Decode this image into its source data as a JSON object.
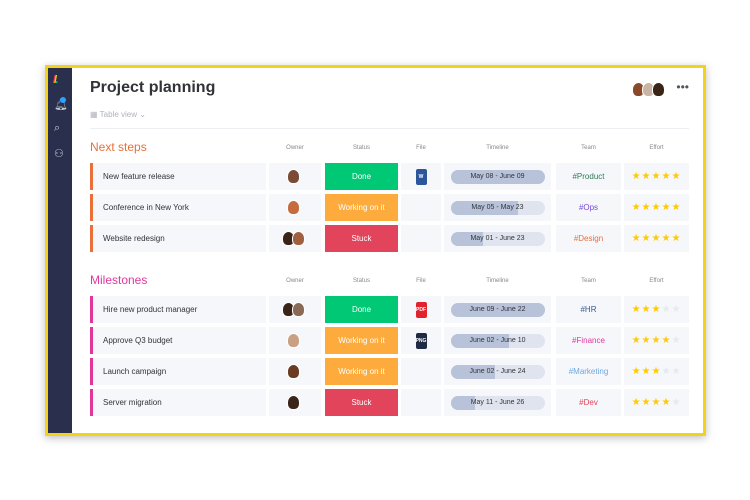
{
  "app": {
    "title": "Project planning",
    "view": "Table view",
    "more": "•••"
  },
  "colors": {
    "done": "#00c875",
    "working": "#fdab3d",
    "stuck": "#e2445c",
    "next_steps": "#e8703a",
    "milestones": "#e2369d",
    "star": "#ffcb00",
    "star_off": "#e6e9ef",
    "frame": "#f2d21b",
    "sidebar": "#292f4c"
  },
  "columns": {
    "owner": "Owner",
    "status": "Status",
    "file": "File",
    "timeline": "Timeline",
    "team": "Team",
    "effort": "Effort"
  },
  "groups": [
    {
      "title": "Next steps",
      "color": "#e8703a",
      "rows": [
        {
          "name": "New feature release",
          "owners": [
            "#7a4b35"
          ],
          "status": "Done",
          "status_color": "#00c875",
          "file": "W",
          "file_color": "#2b579a",
          "timeline": "May 08 - June 09",
          "progress": 100,
          "team": "#Product",
          "team_color": "#2f7a55",
          "effort": 5
        },
        {
          "name": "Conference in New York",
          "owners": [
            "#c46b3f"
          ],
          "status": "Working on it",
          "status_color": "#fdab3d",
          "file": "",
          "timeline": "May 05 - May 23",
          "progress": 72,
          "team": "#Ops",
          "team_color": "#784bd1",
          "effort": 5
        },
        {
          "name": "Website redesign",
          "owners": [
            "#3a2418",
            "#a0603f"
          ],
          "status": "Stuck",
          "status_color": "#e2445c",
          "file": "",
          "timeline": "May 01 - June 23",
          "progress": 35,
          "team": "#Design",
          "team_color": "#e8703a",
          "effort": 5
        }
      ]
    },
    {
      "title": "Milestones",
      "color": "#e2369d",
      "rows": [
        {
          "name": "Hire new product manager",
          "owners": [
            "#3a2418",
            "#8a6a55"
          ],
          "status": "Done",
          "status_color": "#00c875",
          "file": "PDF",
          "file_color": "#e2222c",
          "timeline": "June 09 - June 22",
          "progress": 100,
          "team": "#HR",
          "team_color": "#3a5a8c",
          "effort": 3
        },
        {
          "name": "Approve Q3 budget",
          "owners": [
            "#c9a083"
          ],
          "status": "Working on it",
          "status_color": "#fdab3d",
          "file": "PNG",
          "file_color": "#1f2a44",
          "timeline": "June 02 - June 10",
          "progress": 62,
          "team": "#Finance",
          "team_color": "#e2369d",
          "effort": 4
        },
        {
          "name": "Launch campaign",
          "owners": [
            "#6b3a22"
          ],
          "status": "Working on it",
          "status_color": "#fdab3d",
          "file": "",
          "timeline": "June 02 - June 24",
          "progress": 47,
          "team": "#Marketing",
          "team_color": "#6fa8dc",
          "effort": 3
        },
        {
          "name": "Server migration",
          "owners": [
            "#3b2418"
          ],
          "status": "Stuck",
          "status_color": "#e2445c",
          "file": "",
          "timeline": "May 11 - June 26",
          "progress": 26,
          "team": "#Dev",
          "team_color": "#e2445c",
          "effort": 4
        }
      ]
    }
  ]
}
